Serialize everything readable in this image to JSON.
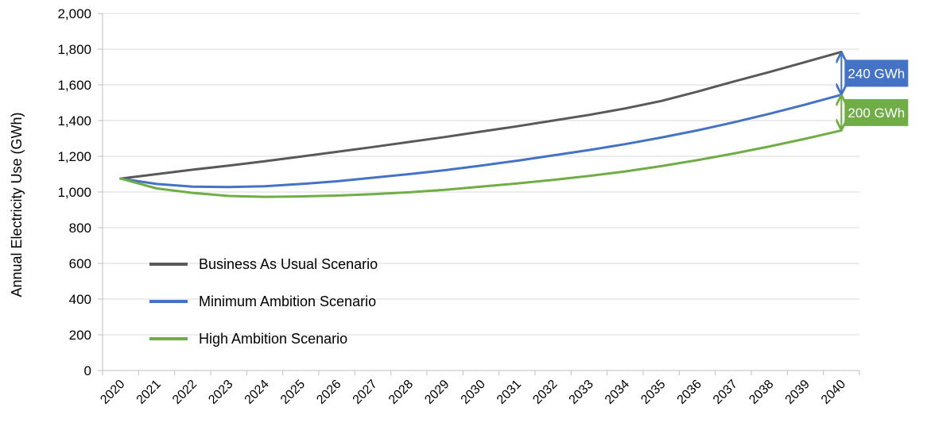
{
  "chart_data": {
    "type": "line",
    "title": "",
    "xlabel": "",
    "ylabel": "Annual Electricity Use (GWh)",
    "ylim": [
      0,
      2000
    ],
    "yticks": [
      "0",
      "200",
      "400",
      "600",
      "800",
      "1,000",
      "1,200",
      "1,400",
      "1,600",
      "1,800",
      "2,000"
    ],
    "grid": "horizontal",
    "legend_position": "inside-bottom-left",
    "categories": [
      "2020",
      "2021",
      "2022",
      "2023",
      "2024",
      "2025",
      "2026",
      "2027",
      "2028",
      "2029",
      "2030",
      "2031",
      "2032",
      "2033",
      "2034",
      "2035",
      "2036",
      "2037",
      "2038",
      "2039",
      "2040"
    ],
    "series": [
      {
        "name": "Business As Usual Scenario",
        "color": "#595959",
        "values": [
          1075,
          1100,
          1125,
          1148,
          1172,
          1198,
          1225,
          1252,
          1280,
          1308,
          1338,
          1368,
          1400,
          1432,
          1468,
          1510,
          1562,
          1618,
          1672,
          1728,
          1785
        ]
      },
      {
        "name": "Minimum Ambition Scenario",
        "color": "#4472C4",
        "values": [
          1075,
          1045,
          1030,
          1028,
          1032,
          1045,
          1060,
          1080,
          1100,
          1122,
          1148,
          1175,
          1205,
          1235,
          1268,
          1305,
          1345,
          1390,
          1438,
          1490,
          1545
        ]
      },
      {
        "name": "High Ambition Scenario",
        "color": "#70AD47",
        "values": [
          1075,
          1020,
          995,
          978,
          973,
          975,
          980,
          988,
          998,
          1012,
          1030,
          1048,
          1068,
          1090,
          1115,
          1145,
          1178,
          1215,
          1255,
          1298,
          1345
        ]
      }
    ],
    "annotations": [
      {
        "text": "240 GWh",
        "color": "#4472C4",
        "from_series": 0,
        "to_series": 1
      },
      {
        "text": "200 GWh",
        "color": "#70AD47",
        "from_series": 1,
        "to_series": 2
      }
    ]
  }
}
